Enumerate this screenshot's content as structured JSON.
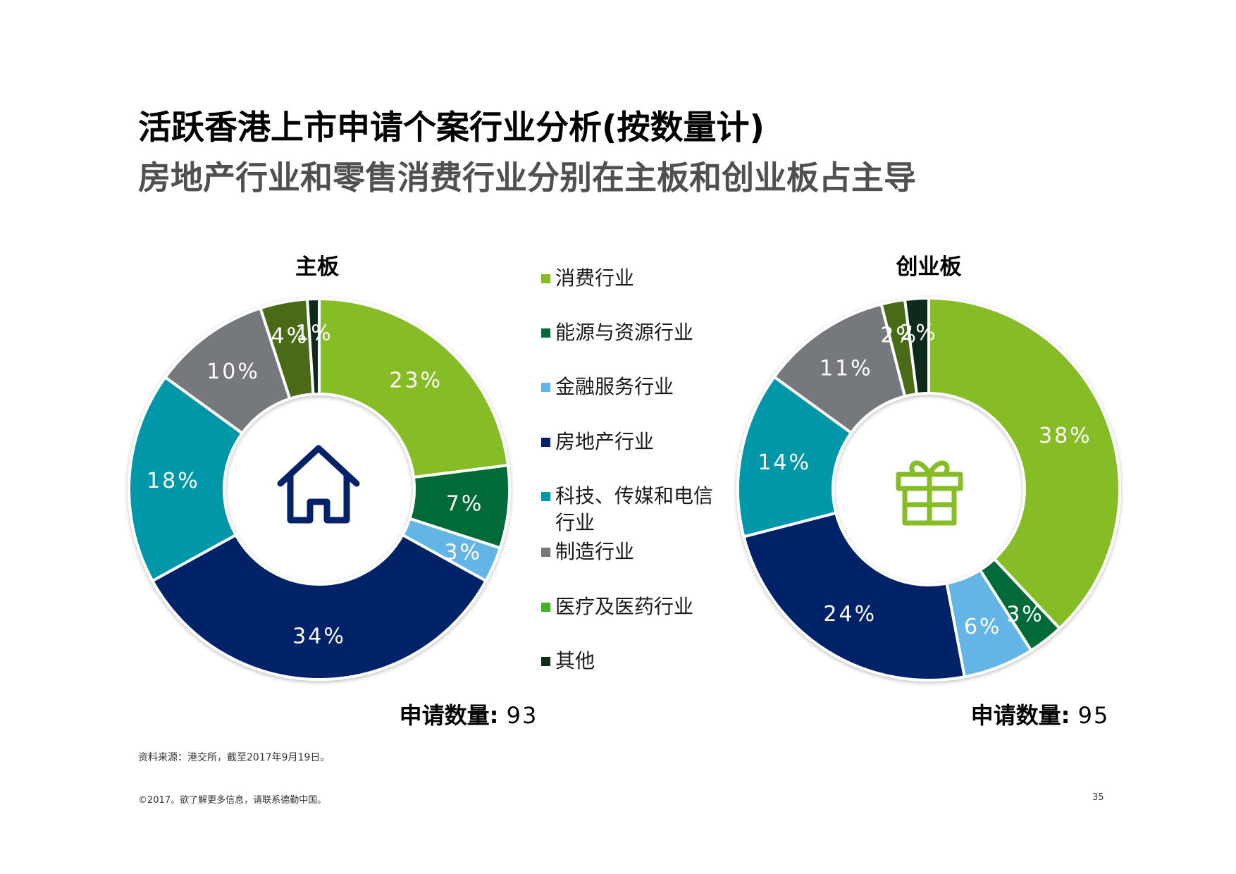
{
  "title": "活跃香港上市申请个案行业分析(按数量计)",
  "subtitle": "房地产行业和零售消费行业分别在主板和创业板占主导",
  "legend": [
    {
      "label": "消费行业",
      "color": "#86BC25"
    },
    {
      "label": "能源与资源行业",
      "color": "#046A38"
    },
    {
      "label": "金融服务行业",
      "color": "#62B5E5"
    },
    {
      "label": "房地产行业",
      "color": "#012169"
    },
    {
      "label": "科技、传媒和电信行业",
      "color": "#0097A9"
    },
    {
      "label": "制造行业",
      "color": "#75787B"
    },
    {
      "label": "医疗及医药行业",
      "color": "#43B02A"
    },
    {
      "label": "其他",
      "color": "#0D2C1B"
    }
  ],
  "chart_data": [
    {
      "type": "pie",
      "title": "主板",
      "count_label": "申请数量",
      "count_value": "93",
      "center_icon": "house-icon",
      "categories": [
        "消费行业",
        "能源与资源行业",
        "金融服务行业",
        "房地产行业",
        "科技、传媒和电信行业",
        "制造行业",
        "医疗及医药行业",
        "其他"
      ],
      "values": [
        23,
        7,
        3,
        34,
        18,
        10,
        4,
        1
      ],
      "labels": [
        "23%",
        "7%",
        "3%",
        "34%",
        "18%",
        "10%",
        "4%",
        "1%"
      ],
      "colors": [
        "#86BC25",
        "#046A38",
        "#62B5E5",
        "#012169",
        "#0097A9",
        "#75787B",
        "#4A6B16",
        "#0D2C1B"
      ]
    },
    {
      "type": "pie",
      "title": "创业板",
      "count_label": "申请数量",
      "count_value": "95",
      "center_icon": "gift-icon",
      "categories": [
        "消费行业",
        "能源与资源行业",
        "金融服务行业",
        "房地产行业",
        "科技、传媒和电信行业",
        "制造行业",
        "医疗及医药行业",
        "其他"
      ],
      "values": [
        38,
        3,
        6,
        24,
        14,
        11,
        2,
        2
      ],
      "labels": [
        "38%",
        "3%",
        "6%",
        "24%",
        "14%",
        "11%",
        "2%",
        "2%"
      ],
      "colors": [
        "#86BC25",
        "#046A38",
        "#62B5E5",
        "#012169",
        "#0097A9",
        "#75787B",
        "#4A6B16",
        "#0D2C1B"
      ]
    }
  ],
  "source": "资料来源：港交所，截至2017年9月19日。",
  "footer": "©2017。欲了解更多信息，请联系德勤中国。",
  "page_number": "35"
}
